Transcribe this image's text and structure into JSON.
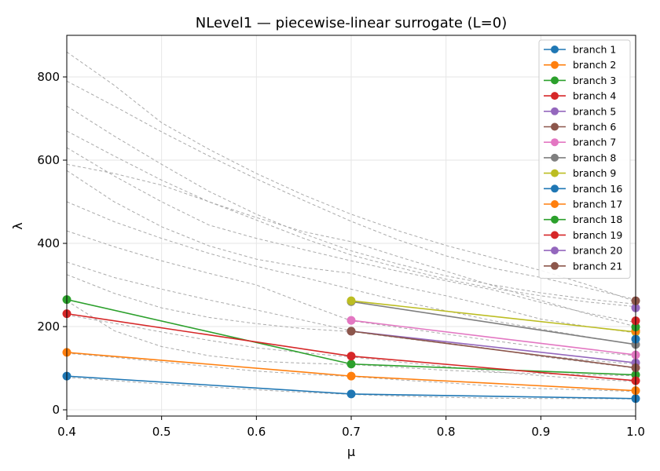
{
  "chart_data": {
    "type": "line",
    "title": "NLevel1 — piecewise-linear surrogate (L=0)",
    "xlabel": "μ",
    "ylabel": "λ",
    "xlim": [
      0.4,
      1.0
    ],
    "ylim": [
      -15,
      900
    ],
    "xticks": [
      0.4,
      0.5,
      0.6,
      0.7,
      0.8,
      0.9,
      1.0
    ],
    "xtick_labels": [
      "0.4",
      "0.5",
      "0.6",
      "0.7",
      "0.8",
      "0.9",
      "1.0"
    ],
    "yticks": [
      0,
      200,
      400,
      600,
      800
    ],
    "ytick_labels": [
      "0",
      "200",
      "400",
      "600",
      "800"
    ],
    "grid": true,
    "legend_position": "top-right",
    "series": [
      {
        "name": "branch 1",
        "color": "#1f77b4",
        "x": [
          0.4,
          0.7,
          1.0
        ],
        "y": [
          81,
          38,
          27
        ]
      },
      {
        "name": "branch 2",
        "color": "#ff7f0e",
        "x": [
          0.4,
          0.7,
          1.0
        ],
        "y": [
          138,
          81,
          46
        ]
      },
      {
        "name": "branch 3",
        "color": "#2ca02c",
        "x": [
          0.4,
          0.7,
          1.0
        ],
        "y": [
          265,
          110,
          84
        ]
      },
      {
        "name": "branch 4",
        "color": "#d62728",
        "x": [
          0.4,
          0.7,
          1.0
        ],
        "y": [
          231,
          129,
          70
        ]
      },
      {
        "name": "branch 5",
        "color": "#9467bd",
        "x": [
          0.7,
          1.0
        ],
        "y": [
          189,
          113
        ]
      },
      {
        "name": "branch 6",
        "color": "#8c564b",
        "x": [
          0.7,
          1.0
        ],
        "y": [
          189,
          101
        ]
      },
      {
        "name": "branch 7",
        "color": "#e377c2",
        "x": [
          0.7,
          1.0
        ],
        "y": [
          215,
          132
        ]
      },
      {
        "name": "branch 8",
        "color": "#7f7f7f",
        "x": [
          0.7,
          1.0
        ],
        "y": [
          260,
          157
        ]
      },
      {
        "name": "branch 9",
        "color": "#bcbd22",
        "x": [
          0.7,
          1.0
        ],
        "y": [
          262,
          187
        ]
      },
      {
        "name": "branch 16",
        "color": "#1f77b4",
        "x": [
          1.0
        ],
        "y": [
          170
        ]
      },
      {
        "name": "branch 17",
        "color": "#ff7f0e",
        "x": [
          1.0
        ],
        "y": [
          190
        ]
      },
      {
        "name": "branch 18",
        "color": "#2ca02c",
        "x": [
          1.0
        ],
        "y": [
          199
        ]
      },
      {
        "name": "branch 19",
        "color": "#d62728",
        "x": [
          1.0
        ],
        "y": [
          214
        ]
      },
      {
        "name": "branch 20",
        "color": "#9467bd",
        "x": [
          1.0
        ],
        "y": [
          245
        ]
      },
      {
        "name": "branch 21",
        "color": "#8c564b",
        "x": [
          1.0
        ],
        "y": [
          262
        ]
      }
    ],
    "reference_curves": {
      "color": "#aaaaaa",
      "style": "dashed",
      "x": [
        0.4,
        0.45,
        0.5,
        0.55,
        0.6,
        0.65,
        0.7,
        0.75,
        0.8,
        0.85,
        0.9,
        0.95,
        1.0
      ],
      "curves": [
        [
          78,
          70,
          62,
          55,
          48,
          42,
          37,
          33,
          30,
          28,
          27,
          27,
          26
        ],
        [
          136,
          126,
          115,
          104,
          93,
          86,
          80,
          72,
          65,
          57,
          51,
          48,
          44
        ],
        [
          262,
          190,
          152,
          130,
          117,
          112,
          109,
          102,
          95,
          90,
          87,
          84,
          82
        ],
        [
          228,
          208,
          187,
          167,
          149,
          137,
          127,
          115,
          104,
          92,
          82,
          74,
          68
        ],
        [
          325,
          280,
          245,
          222,
          207,
          195,
          188,
          173,
          159,
          145,
          131,
          119,
          110
        ],
        [
          355,
          318,
          290,
          264,
          240,
          215,
          190,
          175,
          161,
          146,
          128,
          114,
          100
        ],
        [
          430,
          392,
          358,
          328,
          300,
          256,
          214,
          198,
          182,
          166,
          151,
          140,
          130
        ],
        [
          500,
          452,
          412,
          376,
          345,
          318,
          290,
          262,
          238,
          214,
          194,
          175,
          157
        ],
        [
          575,
          500,
          440,
          394,
          362,
          342,
          328,
          298,
          274,
          248,
          218,
          200,
          185
        ],
        [
          590,
          568,
          540,
          500,
          462,
          428,
          404,
          368,
          333,
          298,
          263,
          230,
          200
        ],
        [
          630,
          562,
          500,
          444,
          412,
          385,
          358,
          333,
          310,
          288,
          258,
          232,
          210
        ],
        [
          670,
          610,
          552,
          500,
          456,
          412,
          372,
          342,
          314,
          292,
          274,
          259,
          248
        ],
        [
          730,
          658,
          590,
          525,
          470,
          423,
          382,
          350,
          322,
          300,
          281,
          266,
          254
        ],
        [
          790,
          730,
          668,
          610,
          555,
          503,
          453,
          408,
          370,
          340,
          318,
          292,
          265
        ],
        [
          860,
          780,
          690,
          626,
          568,
          516,
          470,
          430,
          395,
          365,
          335,
          300,
          260
        ]
      ]
    }
  }
}
